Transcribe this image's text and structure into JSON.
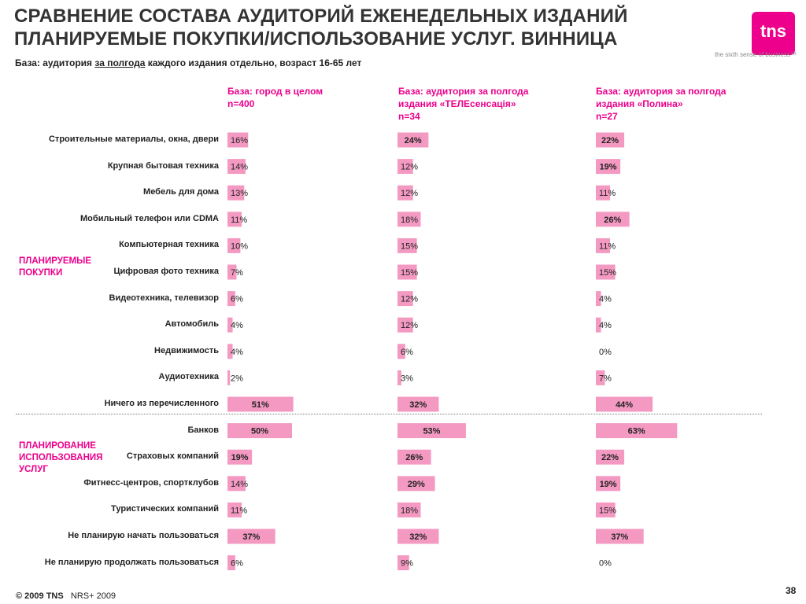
{
  "header": {
    "title_line1": "СРАВНЕНИЕ СОСТАВА АУДИТОРИЙ ЕЖЕНЕДЕЛЬНЫХ ИЗДАНИЙ",
    "title_line2": "ПЛАНИРУЕМЫЕ ПОКУПКИ/ИСПОЛЬЗОВАНИЕ УСЛУГ. ВИННИЦА",
    "base_prefix": "База: аудитория ",
    "base_underlined": "за полгода",
    "base_suffix": " каждого издания отдельно, возраст 16-65 лет"
  },
  "logo": {
    "text": "tns",
    "tagline": "the sixth sense of business™"
  },
  "groups": {
    "purchases": [
      "ПЛАНИРУЕМЫЕ",
      "ПОКУПКИ"
    ],
    "services": [
      "ПЛАНИРОВАНИЕ",
      "ИСПОЛЬЗОВАНИЯ",
      "УСЛУГ"
    ]
  },
  "footer": {
    "copyright": "© 2009 TNS",
    "source": "NRS+ 2009",
    "page": "38"
  },
  "colors": {
    "bar": "#f49ac2",
    "accent": "#ec008c"
  },
  "chart_data": {
    "type": "bar",
    "orientation": "horizontal",
    "unit": "%",
    "categories": [
      "Строительные материалы, окна, двери",
      "Крупная бытовая техника",
      "Мебель для дома",
      "Мобильный телефон или CDMA",
      "Компьютерная техника",
      "Цифровая фото техника",
      "Видеотехника, телевизор",
      "Автомобиль",
      "Недвижимость",
      "Аудиотехника",
      "Ничего из перечисленного",
      "Банков",
      "Страховых компаний",
      "Фитнесс-центров, спортклубов",
      "Туристических компаний",
      "Не планирую начать пользоваться",
      "Не планирую продолжать пользоваться"
    ],
    "series": [
      {
        "name": "База: город в целом n=400",
        "header_lines": [
          "База: город в целом",
          "n=400"
        ],
        "values": [
          16,
          14,
          13,
          11,
          10,
          7,
          6,
          4,
          4,
          2,
          51,
          50,
          19,
          14,
          11,
          37,
          6
        ]
      },
      {
        "name": "База: аудитория за полгода издания «ТЕЛЕсенсація» n=34",
        "header_lines": [
          "База: аудитория за полгода",
          "издания «ТЕЛЕсенсація»",
          "n=34"
        ],
        "values": [
          24,
          12,
          12,
          18,
          15,
          15,
          12,
          12,
          6,
          3,
          32,
          53,
          26,
          29,
          18,
          32,
          9
        ]
      },
      {
        "name": "База: аудитория за полгода издания «Полина» n=27",
        "header_lines": [
          "База: аудитория за полгода",
          "издания «Полина»",
          "n=27"
        ],
        "values": [
          22,
          19,
          11,
          26,
          11,
          15,
          4,
          4,
          0,
          7,
          44,
          63,
          22,
          19,
          15,
          37,
          0
        ]
      }
    ]
  }
}
